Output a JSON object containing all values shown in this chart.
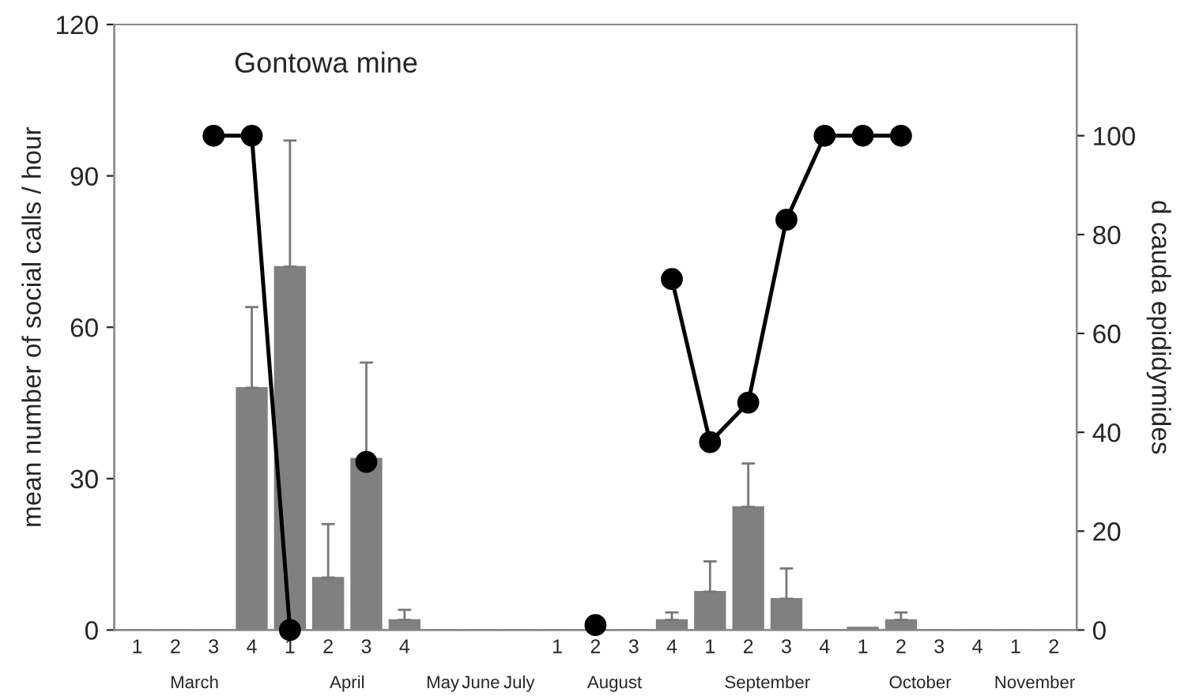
{
  "chart_data": {
    "type": "bar",
    "title": "Gontowa mine",
    "ylabel": "mean number of social calls / hour",
    "y2label": "d cauda epididymides",
    "categories": [
      "1",
      "2",
      "3",
      "4",
      "1",
      "2",
      "3",
      "4",
      null,
      null,
      null,
      "1",
      "2",
      "3",
      "4",
      "1",
      "2",
      "3",
      "4",
      "1",
      "2",
      "3",
      "4",
      "1",
      "2"
    ],
    "annotations": [
      "March",
      "April",
      "May",
      "June",
      "July",
      "August",
      "September",
      "October",
      "November"
    ],
    "series": [
      {
        "color": "#808080",
        "values": [
          0,
          0,
          0,
          48,
          72,
          10.4,
          34,
          2,
          0,
          0,
          0,
          0,
          0,
          0,
          2,
          7.6,
          24.4,
          6.2,
          0,
          0.5,
          2,
          0,
          0,
          0,
          0
        ],
        "errors": [
          null,
          null,
          null,
          [
            48,
            64
          ],
          [
            72,
            97
          ],
          [
            10.4,
            21
          ],
          [
            34,
            53
          ],
          [
            2,
            4
          ],
          null,
          null,
          null,
          null,
          null,
          null,
          [
            2,
            3.5
          ],
          [
            7.6,
            13.6
          ],
          [
            24.4,
            33
          ],
          [
            6.2,
            12.2
          ],
          null,
          null,
          [
            2,
            3.5
          ],
          null,
          null,
          null,
          null
        ]
      },
      {
        "type": "line",
        "axis": "y2",
        "color": "#000000",
        "marker": "circle",
        "line_style": "solid",
        "values": [
          null,
          null,
          100,
          100,
          0,
          null,
          34,
          null,
          null,
          null,
          null,
          null,
          1,
          null,
          71,
          38,
          46,
          83,
          100,
          100,
          100,
          null,
          null,
          null,
          null
        ]
      }
    ],
    "ylim": [
      0,
      120
    ],
    "yticks": [
      0,
      30,
      60,
      90,
      120
    ],
    "y2lim": [
      0,
      122.5
    ],
    "y2ticks": [
      0,
      20,
      40,
      60,
      80,
      100
    ],
    "grid": false,
    "legend": false
  }
}
